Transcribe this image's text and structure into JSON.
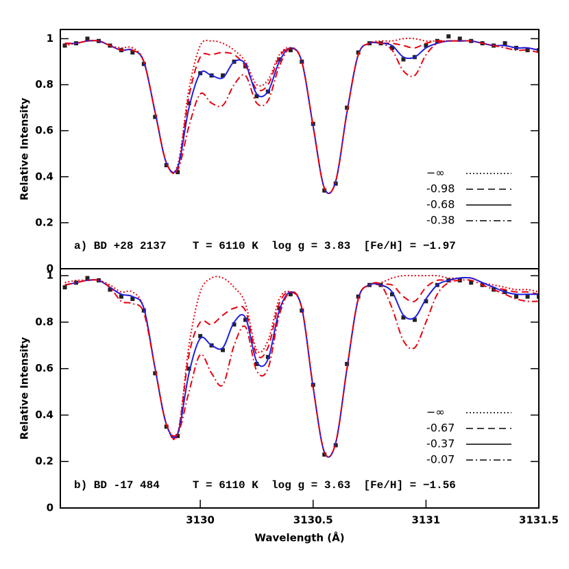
{
  "chart_data": [
    {
      "type": "line",
      "annotation": "a) BD +28 2137    T = 6110 K  log g = 3.83  [Fe/H] = −1.97",
      "ylabel": "Relative Intensity",
      "xlim": [
        3129.38,
        3131.5
      ],
      "ylim": [
        0,
        1.04
      ],
      "yticks": [
        0,
        0.2,
        0.4,
        0.6,
        0.8,
        1
      ],
      "x": [
        3129.4,
        3129.45,
        3129.5,
        3129.55,
        3129.6,
        3129.65,
        3129.7,
        3129.75,
        3129.8,
        3129.85,
        3129.9,
        3129.95,
        3130,
        3130.05,
        3130.1,
        3130.15,
        3130.2,
        3130.25,
        3130.3,
        3130.35,
        3130.4,
        3130.45,
        3130.5,
        3130.55,
        3130.6,
        3130.65,
        3130.7,
        3130.75,
        3130.8,
        3130.85,
        3130.9,
        3130.95,
        3131,
        3131.05,
        3131.1,
        3131.15,
        3131.2,
        3131.25,
        3131.3,
        3131.35,
        3131.4,
        3131.45,
        3131.5
      ],
      "series": [
        {
          "marker": "square",
          "color": "#222222",
          "values": [
            0.97,
            0.98,
            1.0,
            0.99,
            0.97,
            0.95,
            0.94,
            0.89,
            0.66,
            0.45,
            0.42,
            0.72,
            0.85,
            0.84,
            0.84,
            0.9,
            0.88,
            0.75,
            0.77,
            0.91,
            0.95,
            0.9,
            0.63,
            0.34,
            0.37,
            0.7,
            0.94,
            0.98,
            0.98,
            0.96,
            0.91,
            0.92,
            0.97,
            0.99,
            1.01,
            1.0,
            0.99,
            0.98,
            0.97,
            0.98,
            0.96,
            0.95,
            0.95
          ]
        },
        {
          "name": "−∞",
          "style": "dotted",
          "color": "#e8000b",
          "values": [
            0.97,
            0.98,
            0.99,
            0.99,
            0.97,
            0.96,
            0.96,
            0.9,
            0.68,
            0.46,
            0.45,
            0.78,
            0.97,
            0.99,
            0.98,
            0.95,
            0.9,
            0.8,
            0.82,
            0.93,
            0.96,
            0.9,
            0.62,
            0.35,
            0.38,
            0.68,
            0.93,
            0.98,
            0.99,
            0.99,
            1.0,
            1.0,
            0.99,
            0.99,
            0.99,
            0.99,
            0.99,
            0.98,
            0.97,
            0.97,
            0.96,
            0.96,
            0.95
          ]
        },
        {
          "name": "-0.98",
          "style": "dashed",
          "color": "#e8000b",
          "values": [
            0.98,
            0.98,
            0.99,
            0.99,
            0.97,
            0.95,
            0.95,
            0.9,
            0.68,
            0.46,
            0.44,
            0.75,
            0.92,
            0.93,
            0.94,
            0.93,
            0.88,
            0.78,
            0.8,
            0.92,
            0.96,
            0.9,
            0.62,
            0.35,
            0.38,
            0.68,
            0.93,
            0.98,
            0.98,
            0.98,
            0.97,
            0.96,
            0.98,
            0.99,
            0.99,
            0.99,
            0.99,
            0.98,
            0.97,
            0.97,
            0.96,
            0.96,
            0.95
          ]
        },
        {
          "name": "-0.68",
          "style": "solid",
          "color": "#1f1fe0",
          "values": [
            0.98,
            0.98,
            0.99,
            0.99,
            0.97,
            0.95,
            0.95,
            0.9,
            0.68,
            0.46,
            0.44,
            0.7,
            0.85,
            0.84,
            0.83,
            0.9,
            0.89,
            0.76,
            0.77,
            0.9,
            0.96,
            0.9,
            0.62,
            0.35,
            0.38,
            0.68,
            0.93,
            0.98,
            0.98,
            0.97,
            0.92,
            0.92,
            0.96,
            0.98,
            0.99,
            0.99,
            0.99,
            0.98,
            0.97,
            0.97,
            0.96,
            0.96,
            0.95
          ]
        },
        {
          "name": "-0.38",
          "style": "dashdot",
          "color": "#e8000b",
          "values": [
            0.98,
            0.98,
            0.99,
            0.99,
            0.97,
            0.95,
            0.95,
            0.9,
            0.68,
            0.46,
            0.43,
            0.62,
            0.76,
            0.72,
            0.71,
            0.8,
            0.84,
            0.72,
            0.73,
            0.88,
            0.96,
            0.9,
            0.62,
            0.35,
            0.38,
            0.68,
            0.93,
            0.98,
            0.98,
            0.95,
            0.86,
            0.84,
            0.93,
            0.98,
            0.99,
            0.99,
            0.99,
            0.98,
            0.97,
            0.96,
            0.95,
            0.95,
            0.94
          ]
        }
      ]
    },
    {
      "type": "line",
      "annotation": "b) BD -17 484     T = 6110 K  log g = 3.63  [Fe/H] = −1.56",
      "ylabel": "Relative Intensity",
      "xlabel": "Wavelength (Å)",
      "xlim": [
        3129.38,
        3131.5
      ],
      "xticks": [
        3130,
        3130.5,
        3131,
        3131.5
      ],
      "ylim": [
        0,
        1.03
      ],
      "yticks": [
        0,
        0.2,
        0.4,
        0.6,
        0.8,
        1
      ],
      "x": [
        3129.4,
        3129.45,
        3129.5,
        3129.55,
        3129.6,
        3129.65,
        3129.7,
        3129.75,
        3129.8,
        3129.85,
        3129.9,
        3129.95,
        3130,
        3130.05,
        3130.1,
        3130.15,
        3130.2,
        3130.25,
        3130.3,
        3130.35,
        3130.4,
        3130.45,
        3130.5,
        3130.55,
        3130.6,
        3130.65,
        3130.7,
        3130.75,
        3130.8,
        3130.85,
        3130.9,
        3130.95,
        3131,
        3131.05,
        3131.1,
        3131.15,
        3131.2,
        3131.25,
        3131.3,
        3131.35,
        3131.4,
        3131.45,
        3131.5
      ],
      "series": [
        {
          "marker": "square",
          "color": "#222222",
          "values": [
            0.95,
            0.97,
            0.99,
            0.98,
            0.94,
            0.91,
            0.9,
            0.85,
            0.58,
            0.35,
            0.31,
            0.6,
            0.74,
            0.7,
            0.68,
            0.79,
            0.81,
            0.62,
            0.65,
            0.86,
            0.92,
            0.85,
            0.53,
            0.23,
            0.27,
            0.62,
            0.91,
            0.96,
            0.96,
            0.92,
            0.82,
            0.81,
            0.89,
            0.96,
            0.98,
            0.98,
            0.97,
            0.96,
            0.94,
            0.93,
            0.91,
            0.91,
            0.91
          ]
        },
        {
          "name": "−∞",
          "style": "dotted",
          "color": "#e8000b",
          "values": [
            0.97,
            0.98,
            0.98,
            0.98,
            0.96,
            0.93,
            0.93,
            0.86,
            0.6,
            0.36,
            0.32,
            0.7,
            0.93,
            0.99,
            0.99,
            0.95,
            0.88,
            0.68,
            0.72,
            0.9,
            0.93,
            0.86,
            0.52,
            0.24,
            0.28,
            0.6,
            0.9,
            0.96,
            0.97,
            0.99,
            1.0,
            1.0,
            1.0,
            1.0,
            0.99,
            0.99,
            0.99,
            0.97,
            0.96,
            0.95,
            0.94,
            0.94,
            0.93
          ]
        },
        {
          "name": "-0.67",
          "style": "dashed",
          "color": "#e8000b",
          "values": [
            0.96,
            0.97,
            0.98,
            0.98,
            0.95,
            0.92,
            0.91,
            0.86,
            0.6,
            0.36,
            0.32,
            0.66,
            0.8,
            0.79,
            0.83,
            0.86,
            0.85,
            0.66,
            0.69,
            0.88,
            0.93,
            0.86,
            0.52,
            0.24,
            0.28,
            0.6,
            0.9,
            0.96,
            0.96,
            0.96,
            0.91,
            0.89,
            0.95,
            0.98,
            0.98,
            0.99,
            0.99,
            0.97,
            0.95,
            0.94,
            0.93,
            0.93,
            0.92
          ]
        },
        {
          "name": "-0.37",
          "style": "solid",
          "color": "#1f1fe0",
          "values": [
            0.96,
            0.97,
            0.98,
            0.98,
            0.95,
            0.92,
            0.91,
            0.86,
            0.6,
            0.36,
            0.32,
            0.58,
            0.73,
            0.7,
            0.69,
            0.8,
            0.82,
            0.63,
            0.64,
            0.85,
            0.93,
            0.86,
            0.52,
            0.24,
            0.28,
            0.6,
            0.9,
            0.96,
            0.96,
            0.93,
            0.83,
            0.82,
            0.9,
            0.96,
            0.98,
            0.99,
            0.99,
            0.97,
            0.95,
            0.93,
            0.92,
            0.92,
            0.92
          ]
        },
        {
          "name": "-0.07",
          "style": "dashdot",
          "color": "#e8000b",
          "values": [
            0.96,
            0.97,
            0.98,
            0.98,
            0.95,
            0.89,
            0.88,
            0.84,
            0.6,
            0.36,
            0.32,
            0.5,
            0.66,
            0.58,
            0.53,
            0.7,
            0.78,
            0.59,
            0.6,
            0.83,
            0.93,
            0.86,
            0.52,
            0.24,
            0.28,
            0.6,
            0.9,
            0.96,
            0.96,
            0.86,
            0.72,
            0.69,
            0.8,
            0.92,
            0.97,
            0.98,
            0.98,
            0.96,
            0.94,
            0.92,
            0.9,
            0.89,
            0.89
          ]
        }
      ]
    }
  ]
}
